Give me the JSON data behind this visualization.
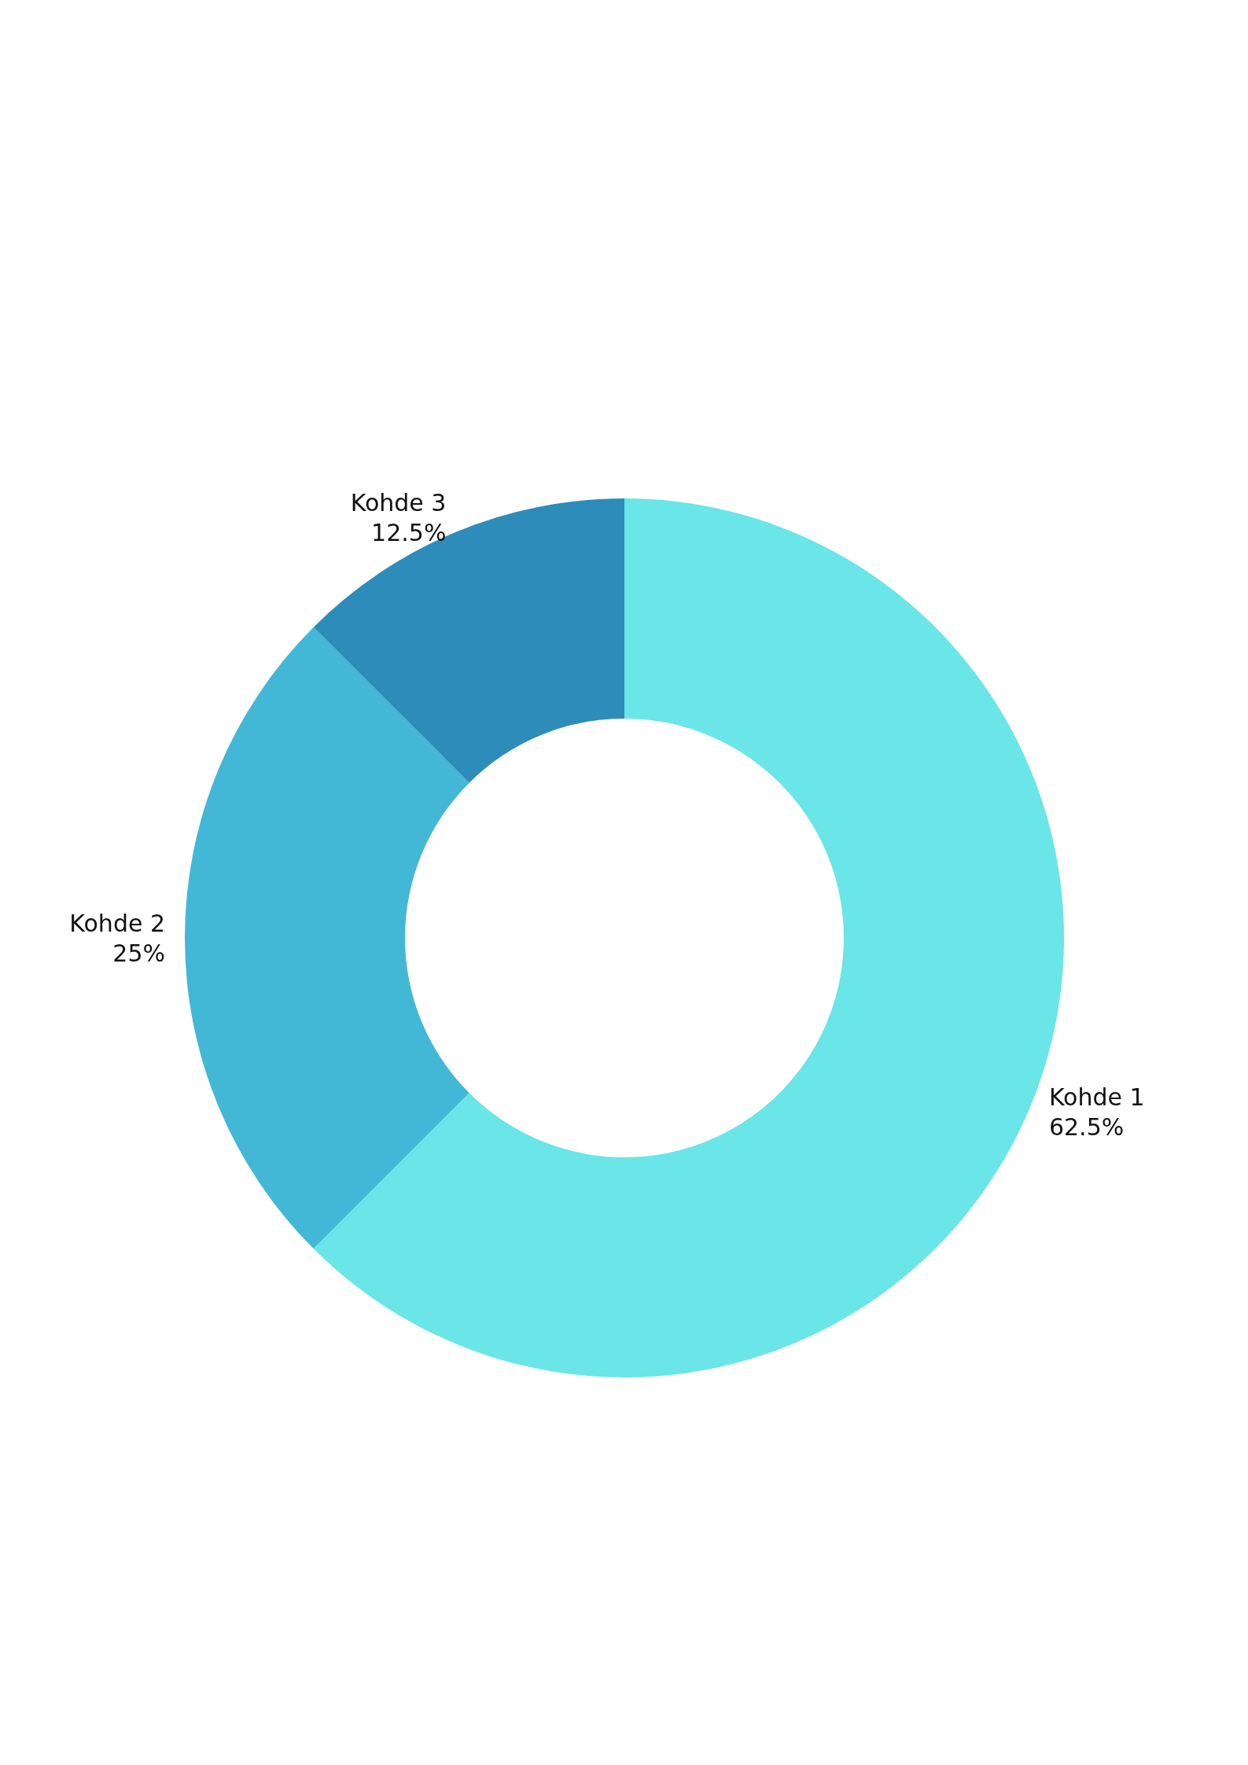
{
  "chart_data": {
    "type": "donut",
    "categories": [
      "Kohde 1",
      "Kohde 2",
      "Kohde 3"
    ],
    "values": [
      62.5,
      25,
      12.5
    ],
    "value_labels": [
      "62.5%",
      "25%",
      "12.5%"
    ],
    "colors": [
      "#6ae5e8",
      "#43b7d6",
      "#2e8cba"
    ],
    "legend": false
  }
}
